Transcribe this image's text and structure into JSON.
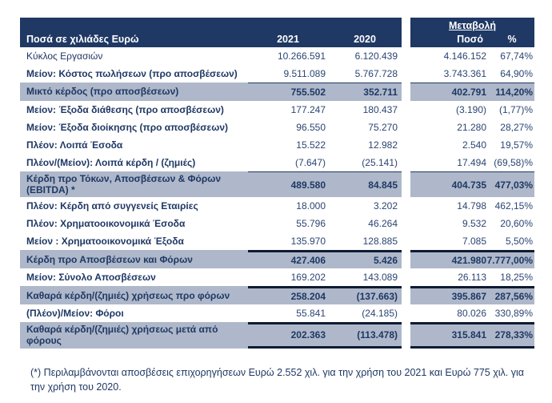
{
  "colors": {
    "header_bg": "#1F3864",
    "highlight_bg": "#AEB8CA",
    "text_navy": "#1F3864",
    "text_number": "#2B4573",
    "border_dark": "#0E1B33"
  },
  "table": {
    "header": {
      "unit_label": "Ποσά σε χιλιάδες Ευρώ",
      "year_1": "2021",
      "year_2": "2020",
      "change_title": "Μεταβολή",
      "change_amount": "Ποσό",
      "change_percent": "%"
    },
    "rows": [
      {
        "label": "Κύκλος Εργασιών",
        "y2021": "10.266.591",
        "y2020": "6.120.439",
        "change_amount": "4.146.152",
        "change_percent": "67,74%",
        "highlight": false,
        "bold_label": false,
        "top_border": "none",
        "bottom_border": "none"
      },
      {
        "label": "Μείον: Κόστος πωλήσεων (προ αποσβέσεων)",
        "y2021": "9.511.089",
        "y2020": "5.767.728",
        "change_amount": "3.743.361",
        "change_percent": "64,90%",
        "highlight": false,
        "bold_label": true,
        "top_border": "none",
        "bottom_border": "none"
      },
      {
        "label": "Μικτό κέρδος (προ αποσβέσεων)",
        "y2021": "755.502",
        "y2020": "352.711",
        "change_amount": "402.791",
        "change_percent": "114,20%",
        "highlight": true,
        "bold_label": true,
        "top_border": "thin",
        "bottom_border": "none"
      },
      {
        "label": "Μείον: Έξοδα διάθεσης (προ αποσβέσεων)",
        "y2021": "177.247",
        "y2020": "180.437",
        "change_amount": "(3.190)",
        "change_percent": "(1,77)%",
        "highlight": false,
        "bold_label": true,
        "top_border": "none",
        "bottom_border": "none"
      },
      {
        "label": "Μείον: Έξοδα διοίκησης (προ αποσβέσεων)",
        "y2021": "96.550",
        "y2020": "75.270",
        "change_amount": "21.280",
        "change_percent": "28,27%",
        "highlight": false,
        "bold_label": true,
        "top_border": "none",
        "bottom_border": "none"
      },
      {
        "label": "Πλέον: Λοιπά Έσοδα",
        "y2021": "15.522",
        "y2020": "12.982",
        "change_amount": "2.540",
        "change_percent": "19,57%",
        "highlight": false,
        "bold_label": true,
        "top_border": "none",
        "bottom_border": "none"
      },
      {
        "label": "Πλέον/(Μείον): Λοιπά κέρδη / (ζημιές)",
        "y2021": "(7.647)",
        "y2020": "(25.141)",
        "change_amount": "17.494",
        "change_percent": "(69,58)%",
        "highlight": false,
        "bold_label": true,
        "top_border": "none",
        "bottom_border": "none"
      },
      {
        "label": "Κέρδη προ Τόκων, Αποσβέσεων & Φόρων (EBITDA) *",
        "y2021": "489.580",
        "y2020": "84.845",
        "change_amount": "404.735",
        "change_percent": "477,03%",
        "highlight": true,
        "bold_label": true,
        "top_border": "thin",
        "bottom_border": "none"
      },
      {
        "label": "Πλέον: Κέρδη από συγγενείς Εταιρίες",
        "y2021": "18.000",
        "y2020": "3.202",
        "change_amount": "14.798",
        "change_percent": "462,15%",
        "highlight": false,
        "bold_label": true,
        "top_border": "none",
        "bottom_border": "none"
      },
      {
        "label": "Πλέον: Χρηματοοικονομικά Έσοδα",
        "y2021": "55.796",
        "y2020": "46.264",
        "change_amount": "9.532",
        "change_percent": "20,60%",
        "highlight": false,
        "bold_label": true,
        "top_border": "none",
        "bottom_border": "none"
      },
      {
        "label": "Μείον : Χρηματοοικονομικά Έξοδα",
        "y2021": "135.970",
        "y2020": "128.885",
        "change_amount": "7.085",
        "change_percent": "5,50%",
        "highlight": false,
        "bold_label": true,
        "top_border": "none",
        "bottom_border": "none"
      },
      {
        "label": "Κέρδη προ Αποσβέσεων και Φόρων",
        "y2021": "427.406",
        "y2020": "5.426",
        "change_amount": "421.980",
        "change_percent": "7.777,00%",
        "highlight": true,
        "bold_label": true,
        "top_border": "thick",
        "bottom_border": "none"
      },
      {
        "label": "Μείον: Σύνολο Αποσβέσεων",
        "y2021": "169.202",
        "y2020": "143.089",
        "change_amount": "26.113",
        "change_percent": "18,25%",
        "highlight": false,
        "bold_label": true,
        "top_border": "none",
        "bottom_border": "none"
      },
      {
        "label": "Καθαρά κέρδη/(ζημιές) χρήσεως προ φόρων",
        "y2021": "258.204",
        "y2020": "(137.663)",
        "change_amount": "395.867",
        "change_percent": "287,56%",
        "highlight": true,
        "bold_label": true,
        "top_border": "thick",
        "bottom_border": "none"
      },
      {
        "label": "(Πλέον)/Μείον: Φόροι",
        "y2021": "55.841",
        "y2020": "(24.185)",
        "change_amount": "80.026",
        "change_percent": "330,89%",
        "highlight": false,
        "bold_label": true,
        "top_border": "none",
        "bottom_border": "none"
      },
      {
        "label": "Καθαρά κέρδη/(ζημιές) χρήσεως μετά από φόρους",
        "y2021": "202.363",
        "y2020": "(113.478)",
        "change_amount": "315.841",
        "change_percent": "278,33%",
        "highlight": true,
        "bold_label": true,
        "top_border": "thick",
        "bottom_border": "thick"
      }
    ]
  },
  "footnote": "(*) Περιλαμβάνονται αποσβέσεις επιχορηγήσεων  Ευρώ 2.552 χιλ. για την χρήση του 2021 και Ευρώ 775 χιλ. για την χρήση του 2020."
}
